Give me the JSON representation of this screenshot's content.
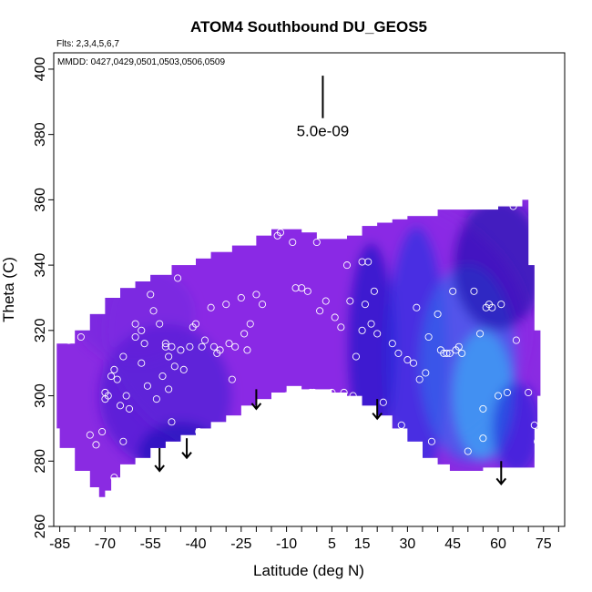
{
  "chart_data": {
    "type": "heatmap",
    "title": "ATOM4 Southbound DU_GEOS5",
    "flights_note": "Flts: 2,3,4,5,6,7",
    "dates_note": "MMDD: 0427,0429,0501,0503,0506,0509",
    "xlabel": "Latitude (deg N)",
    "ylabel": "Theta (C)",
    "xlim": [
      -87,
      82
    ],
    "ylim": [
      260,
      405
    ],
    "x_ticks": [
      -85,
      -70,
      -55,
      -40,
      -25,
      -10,
      5,
      15,
      30,
      45,
      60,
      75
    ],
    "x_minor_ticks": [
      -80,
      -75,
      -65,
      -60,
      -50,
      -45,
      -35,
      -30,
      -20,
      -15,
      -5,
      0,
      10,
      20,
      25,
      35,
      40,
      50,
      55,
      65,
      70,
      80
    ],
    "y_ticks": [
      260,
      280,
      300,
      320,
      340,
      360,
      380,
      400
    ],
    "grid": false,
    "colors": {
      "field_base": "#8a2be2",
      "field_mid": "#4a1fd6",
      "field_deep": "#1a10c0",
      "field_high": "#3fa0f2",
      "points": "#ffffff",
      "arrows": "#000000"
    },
    "scale_bar": {
      "label": "5.0e-09",
      "lat": 2,
      "theta_top": 398,
      "theta_bottom": 385
    },
    "outline": {
      "top": [
        [
          -86,
          316
        ],
        [
          -80,
          320
        ],
        [
          -75,
          325
        ],
        [
          -70,
          330
        ],
        [
          -65,
          333
        ],
        [
          -60,
          335
        ],
        [
          -55,
          337
        ],
        [
          -48,
          340
        ],
        [
          -40,
          342
        ],
        [
          -35,
          344
        ],
        [
          -28,
          346
        ],
        [
          -20,
          349
        ],
        [
          -15,
          351
        ],
        [
          -10,
          351
        ],
        [
          -5,
          350
        ],
        [
          0,
          348
        ],
        [
          5,
          348
        ],
        [
          10,
          349
        ],
        [
          15,
          352
        ],
        [
          20,
          353
        ],
        [
          25,
          354
        ],
        [
          30,
          355
        ],
        [
          40,
          357
        ],
        [
          50,
          357
        ],
        [
          60,
          358
        ],
        [
          68,
          360
        ]
      ],
      "right": [
        [
          68,
          360
        ],
        [
          70,
          340
        ],
        [
          72,
          320
        ],
        [
          74,
          300
        ],
        [
          73,
          290
        ],
        [
          72,
          278
        ]
      ],
      "bottom": [
        [
          72,
          278
        ],
        [
          68,
          278
        ],
        [
          60,
          278
        ],
        [
          55,
          277
        ],
        [
          50,
          277
        ],
        [
          44,
          279
        ],
        [
          40,
          281
        ],
        [
          35,
          286
        ],
        [
          30,
          290
        ],
        [
          25,
          294
        ],
        [
          20,
          297
        ],
        [
          15,
          300
        ],
        [
          10,
          301
        ],
        [
          5,
          302
        ],
        [
          0,
          302
        ],
        [
          -5,
          303
        ],
        [
          -10,
          301
        ],
        [
          -15,
          299
        ],
        [
          -20,
          297
        ],
        [
          -25,
          294
        ],
        [
          -30,
          292
        ],
        [
          -35,
          290
        ],
        [
          -40,
          288
        ],
        [
          -45,
          286
        ],
        [
          -50,
          284
        ],
        [
          -55,
          281
        ],
        [
          -60,
          279
        ],
        [
          -65,
          275
        ],
        [
          -68,
          271
        ],
        [
          -70,
          269
        ],
        [
          -72,
          272
        ],
        [
          -75,
          277
        ],
        [
          -80,
          284
        ],
        [
          -85,
          290
        ],
        [
          -86,
          300
        ]
      ]
    },
    "patches": [
      {
        "lat": 0,
        "theta": 320,
        "sx": 70,
        "sy": 45,
        "color": "#8b2be8",
        "alpha": 0.55
      },
      {
        "lat": -50,
        "theta": 300,
        "sx": 22,
        "sy": 22,
        "color": "#3a1ad0",
        "alpha": 0.55
      },
      {
        "lat": -45,
        "theta": 282,
        "sx": 14,
        "sy": 10,
        "color": "#1a10b8",
        "alpha": 0.6
      },
      {
        "lat": 18,
        "theta": 315,
        "sx": 8,
        "sy": 32,
        "color": "#1c12c8",
        "alpha": 0.7
      },
      {
        "lat": 33,
        "theta": 312,
        "sx": 10,
        "sy": 40,
        "color": "#1f2fe0",
        "alpha": 0.6
      },
      {
        "lat": 50,
        "theta": 310,
        "sx": 16,
        "sy": 30,
        "color": "#2f70ee",
        "alpha": 0.6
      },
      {
        "lat": 55,
        "theta": 300,
        "sx": 10,
        "sy": 20,
        "color": "#3ea4f4",
        "alpha": 0.75
      },
      {
        "lat": 60,
        "theta": 340,
        "sx": 15,
        "sy": 20,
        "color": "#150ca8",
        "alpha": 0.6
      },
      {
        "lat": 66,
        "theta": 290,
        "sx": 8,
        "sy": 14,
        "color": "#1a1fd8",
        "alpha": 0.6
      },
      {
        "lat": -60,
        "theta": 325,
        "sx": 20,
        "sy": 15,
        "color": "#6a26dc",
        "alpha": 0.4
      }
    ],
    "points": [
      [
        -82,
        317
      ],
      [
        -78,
        318
      ],
      [
        -75,
        288
      ],
      [
        -73,
        285
      ],
      [
        -71,
        289
      ],
      [
        -70,
        301
      ],
      [
        -70,
        299
      ],
      [
        -69,
        300
      ],
      [
        -68,
        306
      ],
      [
        -67,
        308
      ],
      [
        -67,
        275
      ],
      [
        -66,
        305
      ],
      [
        -65,
        297
      ],
      [
        -64,
        286
      ],
      [
        -64,
        312
      ],
      [
        -63,
        300
      ],
      [
        -62,
        296
      ],
      [
        -60,
        318
      ],
      [
        -60,
        322
      ],
      [
        -58,
        320
      ],
      [
        -58,
        310
      ],
      [
        -57,
        316
      ],
      [
        -56,
        303
      ],
      [
        -55,
        331
      ],
      [
        -54,
        326
      ],
      [
        -53,
        299
      ],
      [
        -52,
        322
      ],
      [
        -52,
        281
      ],
      [
        -51,
        306
      ],
      [
        -50,
        316
      ],
      [
        -50,
        315
      ],
      [
        -49,
        312
      ],
      [
        -49,
        302
      ],
      [
        -48,
        315
      ],
      [
        -48,
        292
      ],
      [
        -47,
        309
      ],
      [
        -46,
        336
      ],
      [
        -45,
        314
      ],
      [
        -44,
        308
      ],
      [
        -42,
        315
      ],
      [
        -41,
        321
      ],
      [
        -40,
        322
      ],
      [
        -39,
        289
      ],
      [
        -38,
        315
      ],
      [
        -37,
        317
      ],
      [
        -36,
        285
      ],
      [
        -35,
        327
      ],
      [
        -34,
        315
      ],
      [
        -33,
        313
      ],
      [
        -32,
        314
      ],
      [
        -30,
        328
      ],
      [
        -29,
        316
      ],
      [
        -28,
        305
      ],
      [
        -27,
        315
      ],
      [
        -25,
        330
      ],
      [
        -24,
        319
      ],
      [
        -23,
        314
      ],
      [
        -22,
        322
      ],
      [
        -21,
        293
      ],
      [
        -20,
        331
      ],
      [
        -18,
        328
      ],
      [
        -16,
        297
      ],
      [
        -13,
        349
      ],
      [
        -12,
        350
      ],
      [
        -10,
        300
      ],
      [
        -8,
        347
      ],
      [
        -7,
        333
      ],
      [
        -5,
        333
      ],
      [
        -3,
        332
      ],
      [
        -2,
        301
      ],
      [
        -1,
        301
      ],
      [
        0,
        347
      ],
      [
        1,
        326
      ],
      [
        3,
        329
      ],
      [
        5,
        301
      ],
      [
        6,
        324
      ],
      [
        8,
        321
      ],
      [
        9,
        301
      ],
      [
        10,
        340
      ],
      [
        11,
        329
      ],
      [
        12,
        300
      ],
      [
        13,
        312
      ],
      [
        15,
        320
      ],
      [
        15,
        341
      ],
      [
        16,
        328
      ],
      [
        17,
        341
      ],
      [
        18,
        322
      ],
      [
        19,
        332
      ],
      [
        20,
        319
      ],
      [
        22,
        298
      ],
      [
        25,
        316
      ],
      [
        27,
        313
      ],
      [
        28,
        291
      ],
      [
        30,
        311
      ],
      [
        32,
        310
      ],
      [
        33,
        327
      ],
      [
        34,
        305
      ],
      [
        36,
        307
      ],
      [
        37,
        318
      ],
      [
        38,
        286
      ],
      [
        40,
        325
      ],
      [
        41,
        314
      ],
      [
        42,
        313
      ],
      [
        43,
        313
      ],
      [
        44,
        313
      ],
      [
        45,
        332
      ],
      [
        46,
        314
      ],
      [
        47,
        315
      ],
      [
        48,
        313
      ],
      [
        50,
        283
      ],
      [
        52,
        332
      ],
      [
        54,
        319
      ],
      [
        55,
        296
      ],
      [
        55,
        287
      ],
      [
        56,
        327
      ],
      [
        57,
        328
      ],
      [
        58,
        327
      ],
      [
        60,
        300
      ],
      [
        61,
        328
      ],
      [
        63,
        301
      ],
      [
        65,
        358
      ],
      [
        66,
        317
      ],
      [
        70,
        301
      ],
      [
        72,
        291
      ],
      [
        73,
        286
      ],
      [
        74,
        287
      ]
    ],
    "arrows": [
      {
        "lat": -52,
        "theta_top": 284,
        "theta_bottom": 277
      },
      {
        "lat": -43,
        "theta_top": 287,
        "theta_bottom": 281
      },
      {
        "lat": -20,
        "theta_top": 302,
        "theta_bottom": 296
      },
      {
        "lat": 20,
        "theta_top": 299,
        "theta_bottom": 293
      },
      {
        "lat": 61,
        "theta_top": 280,
        "theta_bottom": 273
      }
    ]
  }
}
